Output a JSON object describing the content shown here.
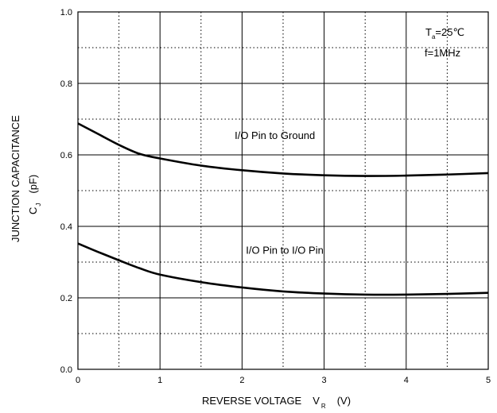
{
  "chart_data": {
    "type": "line",
    "title": "",
    "xlabel": {
      "main": "REVERSE VOLTAGE",
      "symbol": "V",
      "subscript": "R",
      "unit": "(V)"
    },
    "ylabel": {
      "main": "JUNCTION CAPACITANCE",
      "symbol": "C",
      "subscript": "J",
      "unit": "(pF)"
    },
    "xlim": [
      0,
      5
    ],
    "ylim": [
      0.0,
      1.0
    ],
    "x_ticks": [
      "0",
      "1",
      "2",
      "3",
      "4",
      "5"
    ],
    "y_ticks": [
      "0.0",
      "0.2",
      "0.4",
      "0.6",
      "0.8",
      "1.0"
    ],
    "grid": {
      "major": "solid",
      "minor": "dotted",
      "x_minor_step": 0.5,
      "y_minor_step": 0.1
    },
    "conditions": {
      "temp_symbol": "T",
      "temp_subscript": "a",
      "temp_value": "=25℃",
      "frequency": "f=1MHz"
    },
    "series": [
      {
        "label": "I/O Pin to Ground",
        "x": [
          0,
          0.25,
          0.5,
          0.75,
          1.0,
          1.5,
          2.0,
          2.5,
          3.0,
          3.5,
          4.0,
          4.5,
          5.0
        ],
        "y": [
          0.688,
          0.658,
          0.628,
          0.603,
          0.59,
          0.57,
          0.557,
          0.548,
          0.543,
          0.541,
          0.542,
          0.545,
          0.549
        ]
      },
      {
        "label": "I/O Pin to I/O Pin",
        "x": [
          0,
          0.25,
          0.5,
          0.75,
          1.0,
          1.5,
          2.0,
          2.5,
          3.0,
          3.5,
          4.0,
          4.5,
          5.0
        ],
        "y": [
          0.352,
          0.328,
          0.305,
          0.283,
          0.265,
          0.244,
          0.229,
          0.218,
          0.212,
          0.209,
          0.209,
          0.211,
          0.214
        ]
      }
    ],
    "line_color": "#000000",
    "grid_color": "#000000"
  }
}
